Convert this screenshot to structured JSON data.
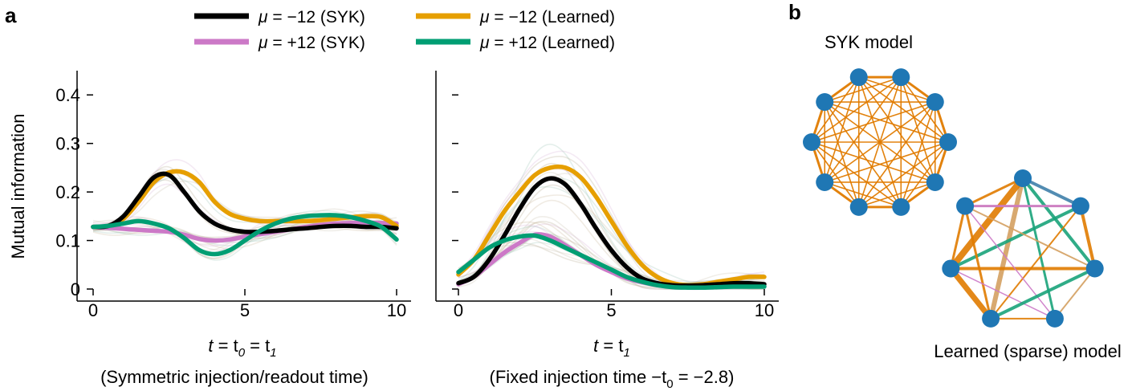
{
  "panel_a_label": "a",
  "panel_b_label": "b",
  "legend": [
    {
      "series": "syk_neg",
      "mu_text": "μ",
      "value_text": " = −12 (SYK)",
      "color": "#000000"
    },
    {
      "series": "syk_pos",
      "mu_text": "μ",
      "value_text": " = +12 (SYK)",
      "color": "#CC79C7"
    },
    {
      "series": "learned_neg",
      "mu_text": "μ",
      "value_text": " = −12 (Learned)",
      "color": "#E69F00"
    },
    {
      "series": "learned_pos",
      "mu_text": "μ",
      "value_text": " = +12 (Learned)",
      "color": "#009E73"
    }
  ],
  "chart_data": [
    {
      "type": "line",
      "panel": "a-left",
      "ylabel": "Mutual information",
      "xlabel_main": "t",
      "xlabel_eq1": " = t",
      "xlabel_sub0": "0",
      "xlabel_eq2": " = t",
      "xlabel_sub1": "1",
      "caption": "(Symmetric injection/readout time)",
      "xlim": [
        0,
        10
      ],
      "ylim": [
        0,
        0.45
      ],
      "xticks": [
        "0",
        "5",
        "10"
      ],
      "yticks": [
        "0",
        "0.1",
        "0.2",
        "0.3",
        "0.4"
      ],
      "x": [
        0,
        0.5,
        1,
        1.5,
        2,
        2.5,
        3,
        3.5,
        4,
        4.5,
        5,
        5.5,
        6,
        6.5,
        7,
        7.5,
        8,
        8.5,
        9,
        9.5,
        10
      ],
      "series": [
        {
          "name": "μ = −12 (SYK)",
          "key": "syk_neg",
          "values": [
            0.128,
            0.13,
            0.15,
            0.19,
            0.23,
            0.235,
            0.2,
            0.16,
            0.135,
            0.123,
            0.118,
            0.118,
            0.12,
            0.123,
            0.125,
            0.128,
            0.13,
            0.13,
            0.128,
            0.128,
            0.125
          ]
        },
        {
          "name": "μ = +12 (SYK)",
          "key": "syk_pos",
          "values": [
            0.128,
            0.126,
            0.124,
            0.122,
            0.12,
            0.118,
            0.112,
            0.103,
            0.1,
            0.102,
            0.108,
            0.113,
            0.118,
            0.123,
            0.128,
            0.132,
            0.135,
            0.136,
            0.137,
            0.136,
            0.135
          ]
        },
        {
          "name": "μ = −12 (Learned)",
          "key": "learned_neg",
          "values": [
            0.128,
            0.13,
            0.145,
            0.18,
            0.22,
            0.24,
            0.24,
            0.22,
            0.18,
            0.155,
            0.145,
            0.14,
            0.14,
            0.14,
            0.14,
            0.142,
            0.145,
            0.148,
            0.15,
            0.148,
            0.13
          ]
        },
        {
          "name": "μ = +12 (Learned)",
          "key": "learned_pos",
          "values": [
            0.128,
            0.13,
            0.135,
            0.14,
            0.135,
            0.125,
            0.105,
            0.08,
            0.072,
            0.08,
            0.1,
            0.12,
            0.135,
            0.145,
            0.15,
            0.152,
            0.152,
            0.148,
            0.14,
            0.128,
            0.102
          ]
        }
      ]
    },
    {
      "type": "line",
      "panel": "a-right",
      "xlabel_main": "t",
      "xlabel_eq1": " = t",
      "xlabel_sub1": "1",
      "caption_pre": "(Fixed injection time −t",
      "caption_sub": "0",
      "caption_post": " = −2.8)",
      "xlim": [
        0,
        10
      ],
      "ylim": [
        0,
        0.45
      ],
      "xticks": [
        "0",
        "5",
        "10"
      ],
      "x": [
        0,
        0.5,
        1,
        1.5,
        2,
        2.5,
        3,
        3.5,
        4,
        4.5,
        5,
        5.5,
        6,
        6.5,
        7,
        7.5,
        8,
        8.5,
        9,
        9.5,
        10
      ],
      "series": [
        {
          "name": "μ = −12 (SYK)",
          "key": "syk_neg",
          "values": [
            0.012,
            0.025,
            0.06,
            0.11,
            0.165,
            0.21,
            0.228,
            0.215,
            0.175,
            0.125,
            0.08,
            0.045,
            0.022,
            0.012,
            0.008,
            0.007,
            0.008,
            0.01,
            0.012,
            0.012,
            0.01
          ]
        },
        {
          "name": "μ = +12 (SYK)",
          "key": "syk_pos",
          "values": [
            0.01,
            0.025,
            0.05,
            0.075,
            0.095,
            0.112,
            0.108,
            0.09,
            0.07,
            0.05,
            0.035,
            0.022,
            0.014,
            0.008,
            0.005,
            0.004,
            0.004,
            0.005,
            0.006,
            0.006,
            0.006
          ]
        },
        {
          "name": "μ = −12 (Learned)",
          "key": "learned_neg",
          "values": [
            0.03,
            0.06,
            0.11,
            0.16,
            0.2,
            0.235,
            0.25,
            0.25,
            0.23,
            0.19,
            0.14,
            0.09,
            0.05,
            0.025,
            0.012,
            0.008,
            0.01,
            0.015,
            0.02,
            0.025,
            0.025
          ]
        },
        {
          "name": "μ = +12 (Learned)",
          "key": "learned_pos",
          "values": [
            0.035,
            0.06,
            0.085,
            0.1,
            0.108,
            0.11,
            0.1,
            0.085,
            0.07,
            0.055,
            0.04,
            0.025,
            0.015,
            0.008,
            0.004,
            0.003,
            0.003,
            0.004,
            0.005,
            0.005,
            0.005
          ]
        }
      ]
    }
  ],
  "graph_panel": {
    "syk_title": "SYK model",
    "learned_title": "Learned (sparse) model",
    "node_color": "#1F77B4",
    "edge_orange": "#E07B00",
    "edge_green": "#1AA37A",
    "edge_pink": "#CC79C7",
    "edge_blue": "#3F7FAA",
    "edge_tan": "#D4A060"
  }
}
